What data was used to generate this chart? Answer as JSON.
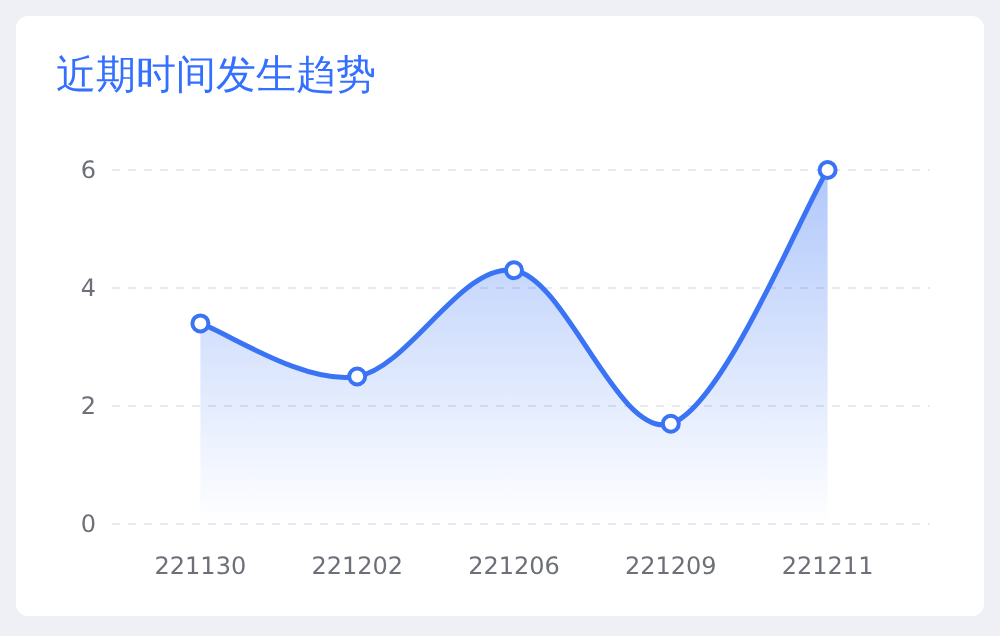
{
  "chart_data": {
    "type": "area",
    "title": "近期时间发生趋势",
    "categories": [
      "221130",
      "221202",
      "221206",
      "221209",
      "221211"
    ],
    "series": [
      {
        "color": "#3a74f5",
        "values": [
          3.4,
          2.5,
          4.3,
          1.7,
          6
        ]
      }
    ],
    "ylim": [
      0,
      6
    ],
    "yticks": [
      0,
      2,
      4,
      6
    ],
    "grid": "y",
    "marker": "circle"
  }
}
